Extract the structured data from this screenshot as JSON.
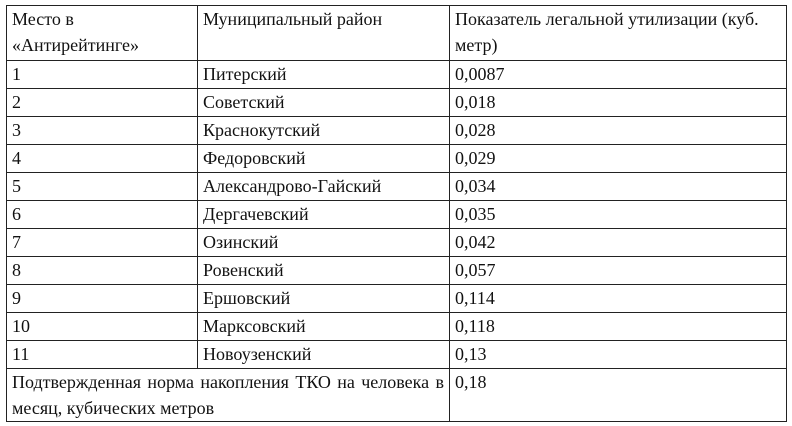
{
  "table": {
    "headers": [
      "Место в «Антирейтинге»",
      "Муниципальный район",
      "Показатель легальной утилизации (куб. метр)"
    ],
    "rows": [
      {
        "rank": "1",
        "district": "Питерский",
        "value": "0,0087"
      },
      {
        "rank": "2",
        "district": "Советский",
        "value": "0,018"
      },
      {
        "rank": "3",
        "district": "Краснокутский",
        "value": "0,028"
      },
      {
        "rank": "4",
        "district": "Федоровский",
        "value": "0,029"
      },
      {
        "rank": "5",
        "district": "Александрово-Гайский",
        "value": "0,034"
      },
      {
        "rank": "6",
        "district": "Дергачевский",
        "value": "0,035"
      },
      {
        "rank": "7",
        "district": "Озинский",
        "value": "0,042"
      },
      {
        "rank": "8",
        "district": "Ровенский",
        "value": "0,057"
      },
      {
        "rank": "9",
        "district": "Ершовский",
        "value": "0,114"
      },
      {
        "rank": "10",
        "district": "Марксовский",
        "value": "0,118"
      },
      {
        "rank": "11",
        "district": "Новоузенский",
        "value": "0,13"
      }
    ],
    "footer": {
      "label": "Подтвержденная норма накопления ТКО на человека в месяц, кубических метров",
      "value": "0,18"
    }
  }
}
